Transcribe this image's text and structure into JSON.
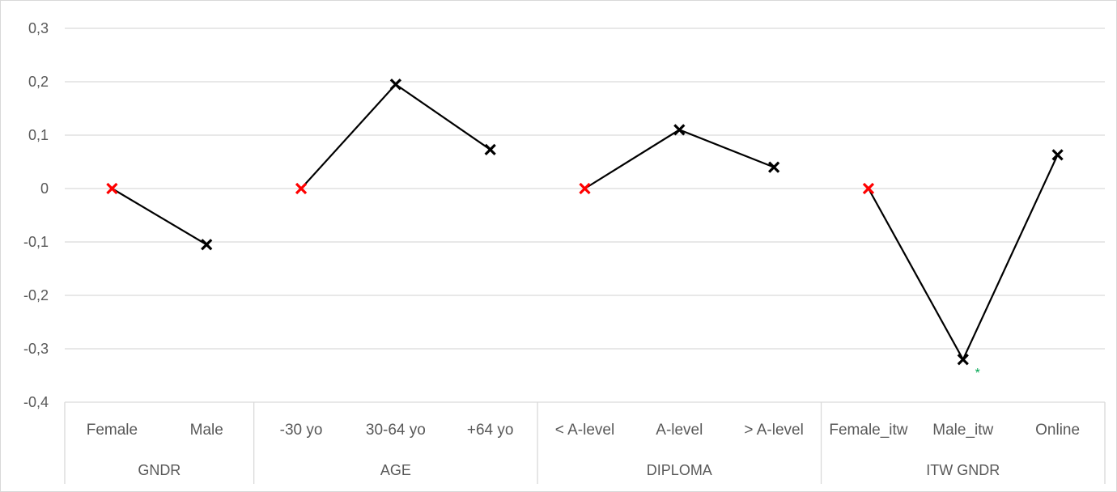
{
  "chart_data": {
    "type": "line",
    "ylim": [
      -0.4,
      0.3
    ],
    "y_ticks": [
      {
        "value": 0.3,
        "label": "0,3"
      },
      {
        "value": 0.2,
        "label": "0,2"
      },
      {
        "value": 0.1,
        "label": "0,1"
      },
      {
        "value": 0,
        "label": "0"
      },
      {
        "value": -0.1,
        "label": "-0,1"
      },
      {
        "value": -0.2,
        "label": "-0,2"
      },
      {
        "value": -0.3,
        "label": "-0,3"
      },
      {
        "value": -0.4,
        "label": "-0,4"
      }
    ],
    "grid": true,
    "legend": "none",
    "colors": {
      "reference": "#ff0000",
      "marker": "#000000",
      "line": "#000000",
      "annotation": "#00a651",
      "grid": "#d9d9d9"
    },
    "groups": [
      {
        "label": "GNDR",
        "categories": [
          "Female",
          "Male"
        ],
        "values": [
          0,
          -0.105
        ],
        "reference": [
          true,
          false
        ]
      },
      {
        "label": "AGE",
        "categories": [
          "-30 yo",
          "30-64 yo",
          "+64 yo"
        ],
        "values": [
          0,
          0.195,
          0.073
        ],
        "reference": [
          true,
          false,
          false
        ]
      },
      {
        "label": "DIPLOMA",
        "categories": [
          "< A-level",
          "A-level",
          "> A-level"
        ],
        "values": [
          0,
          0.11,
          0.04
        ],
        "reference": [
          true,
          false,
          false
        ]
      },
      {
        "label": "ITW GNDR",
        "categories": [
          "Female_itw",
          "Male_itw",
          "Online"
        ],
        "values": [
          0,
          -0.32,
          0.063
        ],
        "reference": [
          true,
          false,
          false
        ]
      }
    ],
    "annotations": [
      {
        "group": 3,
        "category": 1,
        "text": "*"
      }
    ]
  }
}
